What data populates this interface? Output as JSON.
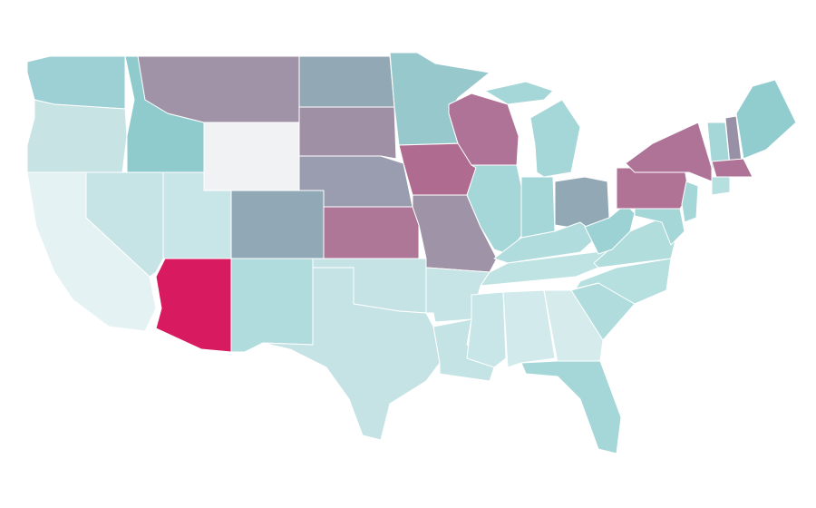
{
  "map": {
    "fills": [
      "#9dd0d4",
      "#c8e3e4",
      "#e4f2f3",
      "#c6e4e5",
      "#8fcacc",
      "#a093a8",
      "#f0f2f4",
      "#c8e6e7",
      "#91a8b6",
      "#d81b60",
      "#b0dcdd",
      "#93a8b5",
      "#9f90a6",
      "#9a9db0",
      "#ae7697",
      "#c5e3e4",
      "#c5e3e4",
      "#96c8cc",
      "#b06c90",
      "#9f93a8",
      "#ae7396",
      "#a5d6d8",
      "#a5d6d8",
      "#a5d6d8",
      "#a5d6d8",
      "#92a8b5",
      "#b0dcdd",
      "#bfe2e3",
      "#c6e4e5",
      "#c4e3e4",
      "#c8e6e7",
      "#d2eaeb",
      "#d6ecec",
      "#a5d6d8",
      "#b0dcdd",
      "#b6dfe0",
      "#b2dddd",
      "#9dd2d4",
      "#b07295",
      "#ae7396",
      "#a5d6d8",
      "#9890a6",
      "#91cccf",
      "#ae7396",
      "#b6dfe0",
      "#a5d6d8",
      "#a5d6d8"
    ]
  }
}
